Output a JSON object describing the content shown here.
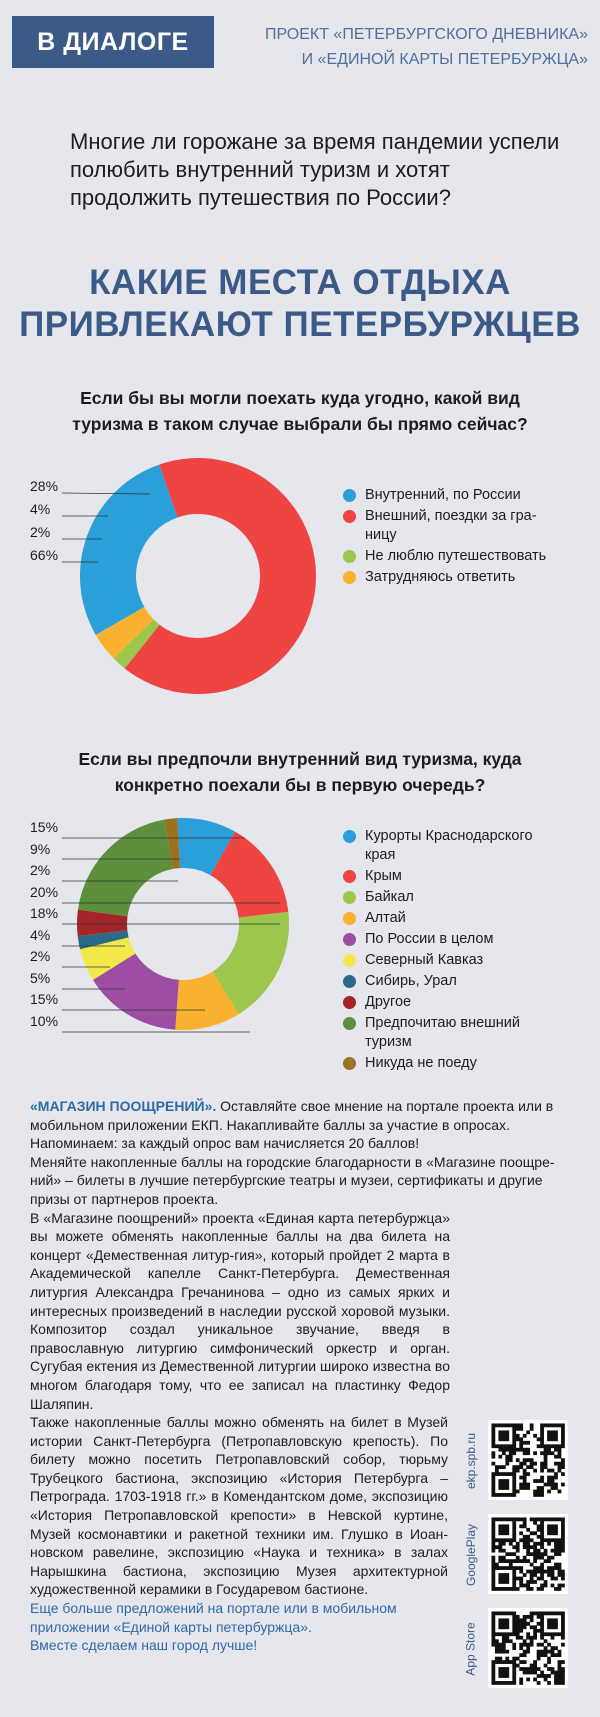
{
  "header": {
    "badge": "В ДИАЛОГЕ",
    "project_line1": "ПРОЕКТ «ПЕТЕРБУРГСКОГО ДНЕВНИКА»",
    "project_line2": "И «ЕДИНОЙ КАРТЫ ПЕТЕРБУРЖЦА»"
  },
  "lead": "Многие ли горожане за время пандемии успели полюбить внутренний туризм и хотят продолжить путешествия по России?",
  "headline_line1": "КАКИЕ МЕСТА ОТДЫХА",
  "headline_line2": "ПРИВЛЕКАЮТ ПЕТЕРБУРЖЦЕВ",
  "chart_data": [
    {
      "type": "pie",
      "title_line1": "Если бы вы могли поехать куда угодно, какой вид",
      "title_line2": "туризма в таком случае выбрали бы прямо сейчас?",
      "labels_order": [
        "28%",
        "4%",
        "2%",
        "66%"
      ],
      "slices": [
        {
          "label": "Внутренний, по России",
          "legend_lines": [
            "Внутренний, по России"
          ],
          "value": 28,
          "color": "#2a9fd9"
        },
        {
          "label": "Внешний, поездки за границу",
          "legend_lines": [
            "Внешний, поездки за гра-",
            "ницу"
          ],
          "value": 66,
          "color": "#ee4442"
        },
        {
          "label": "Не люблю путешествовать",
          "legend_lines": [
            "Не люблю путешествовать"
          ],
          "value": 2,
          "color": "#9dc64c"
        },
        {
          "label": "Затрудняюсь ответить",
          "legend_lines": [
            "Затрудняюсь ответить"
          ],
          "value": 4,
          "color": "#f9b22f"
        }
      ]
    },
    {
      "type": "pie",
      "title_line1": "Если вы предпочли внутренний вид туризма, куда",
      "title_line2": "конкретно поехали бы в первую очередь?",
      "labels_order": [
        "15%",
        "9%",
        "2%",
        "20%",
        "18%",
        "4%",
        "2%",
        "5%",
        "15%",
        "10%"
      ],
      "slices": [
        {
          "label": "Курорты Краснодарского края",
          "legend_lines": [
            "Курорты Краснодарского",
            "края"
          ],
          "value": 9,
          "color": "#2a9fd9"
        },
        {
          "label": "Крым",
          "legend_lines": [
            "Крым"
          ],
          "value": 15,
          "color": "#ee4442"
        },
        {
          "label": "Байкал",
          "legend_lines": [
            "Байкал"
          ],
          "value": 18,
          "color": "#9dc64c"
        },
        {
          "label": "Алтай",
          "legend_lines": [
            "Алтай"
          ],
          "value": 10,
          "color": "#f9b22f"
        },
        {
          "label": "По России в целом",
          "legend_lines": [
            "По России в целом"
          ],
          "value": 15,
          "color": "#9d4ea3"
        },
        {
          "label": "Северный Кавказ",
          "legend_lines": [
            "Северный Кавказ"
          ],
          "value": 5,
          "color": "#f2e84a"
        },
        {
          "label": "Сибирь, Урал",
          "legend_lines": [
            "Сибирь, Урал"
          ],
          "value": 2,
          "color": "#2d6a8a"
        },
        {
          "label": "Другое",
          "legend_lines": [
            "Другое"
          ],
          "value": 4,
          "color": "#a42528"
        },
        {
          "label": "Предпочитаю внешний туризм",
          "legend_lines": [
            "Предпочитаю внешний",
            "туризм"
          ],
          "value": 20,
          "color": "#5e8f3c"
        },
        {
          "label": "Никуда не поеду",
          "legend_lines": [
            "Никуда не поеду"
          ],
          "value": 2,
          "color": "#9a7322"
        }
      ]
    }
  ],
  "article": {
    "p1_lead": "«МАГАЗИН ПООЩРЕНИЙ».",
    "p1_rest": " Оставляйте свое мнение на портале проекта или в мобильном приложении ЕКП. Накапливайте баллы за участие в опросах. Напоминаем: за каждый опрос вам начисляется 20 баллов!",
    "p2": "Меняйте накопленные баллы на городские благодарности в «Магазине поощре-ний» – билеты в лучшие петербургские театры и музеи, сертификаты и другие призы от партнеров проекта.",
    "p3": "В «Магазине поощрений» проекта «Единая карта петербуржца» вы можете обменять накопленные баллы на два билета на концерт «Демественная литур-гия», который пройдет 2 марта в Академической капелле Санкт-Петербурга. Демественная литургия Александра Гречанинова – одно из самых ярких и интересных произведений в наследии русской хоровой музыки. Композитор создал уникальное звучание, введя в православную литургию симфонический оркестр и орган. Сугубая ектения из Демественной литургии широко известна во многом благодаря тому, что ее записал на пластинку Федор Шаляпин.",
    "p4": "Также накопленные баллы можно обменять на билет в Музей истории Санкт-Петербурга (Петропавловскую крепость). По билету можно посетить Петропавловский собор, тюрьму Трубецкого бастиона, экспозицию «История Петербурга – Петрограда. 1703-1918 гг.» в Комендантском доме, экспозицию «История Петропавловской крепости» в Невской куртине, Музей космонавтики и ракетной техники им. Глушко в Иоан-новском равелине, экспозицию «Наука и техника» в залах Нарышкина бастиона, экспозицию Музея архитектурной художественной керамики в Государевом бастионе.",
    "p5": "Еще больше предложений на портале или в мобильном приложении «Единой карты петербуржца».",
    "p6": "Вместе сделаем наш город лучше!"
  },
  "qr_codes": [
    {
      "label": "ekp.spb.ru"
    },
    {
      "label": "GooglePlay"
    },
    {
      "label": "App Store"
    }
  ],
  "colors": {
    "accent": "#3b5a88",
    "link": "#2f6aa8",
    "background": "#e6e7ec"
  }
}
